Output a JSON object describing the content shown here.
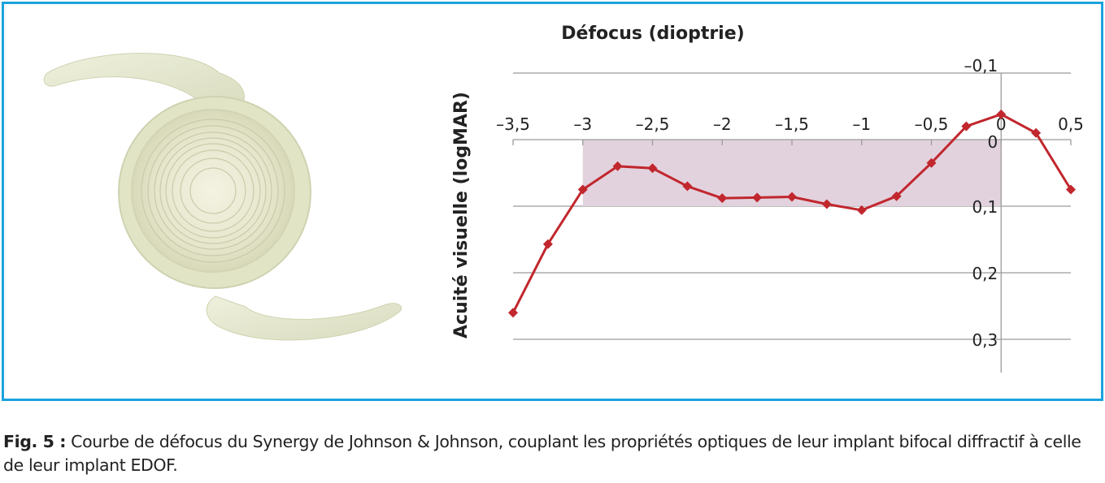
{
  "chart_data": {
    "type": "line",
    "title": "Défocus (dioptrie)",
    "xlabel": "Défocus (dioptrie)",
    "ylabel": "Acuité visuelle (logMAR)",
    "x_ticks": [
      "–3,5",
      "–3",
      "–2,5",
      "–2",
      "–1,5",
      "–1",
      "–0,5",
      "0",
      "0,5"
    ],
    "y_ticks": [
      "–0,1",
      "0",
      "0,1",
      "0,2",
      "0,3"
    ],
    "xlim": [
      -3.5,
      0.5
    ],
    "ylim": [
      -0.1,
      0.35
    ],
    "y_inverted": true,
    "grid": true,
    "shaded_region": {
      "x": [
        -3,
        0
      ],
      "y": [
        0,
        0.1
      ],
      "color": "#e2d2de"
    },
    "series": [
      {
        "color": "#c1272d",
        "x": [
          -3.5,
          -3.25,
          -3,
          -2.75,
          -2.5,
          -2.25,
          -2,
          -1.75,
          -1.5,
          -1.25,
          -1,
          -0.75,
          -0.5,
          -0.25,
          0,
          0.25,
          0.5
        ],
        "values": [
          0.26,
          0.157,
          0.075,
          0.04,
          0.043,
          0.07,
          0.088,
          0.087,
          0.086,
          0.097,
          0.106,
          0.085,
          0.035,
          -0.02,
          -0.038,
          -0.01,
          0.075
        ]
      }
    ]
  },
  "caption": {
    "label": "Fig. 5 :",
    "text": "Courbe de défocus du Synergy de Johnson & Johnson, couplant les propriétés optiques de leur implant bifocal diffractif à celle de leur implant EDOF."
  },
  "colors": {
    "frame": "#1aa3dc",
    "line": "#c1272d",
    "shade": "#e2d2de",
    "grid": "#9b9b9b"
  }
}
